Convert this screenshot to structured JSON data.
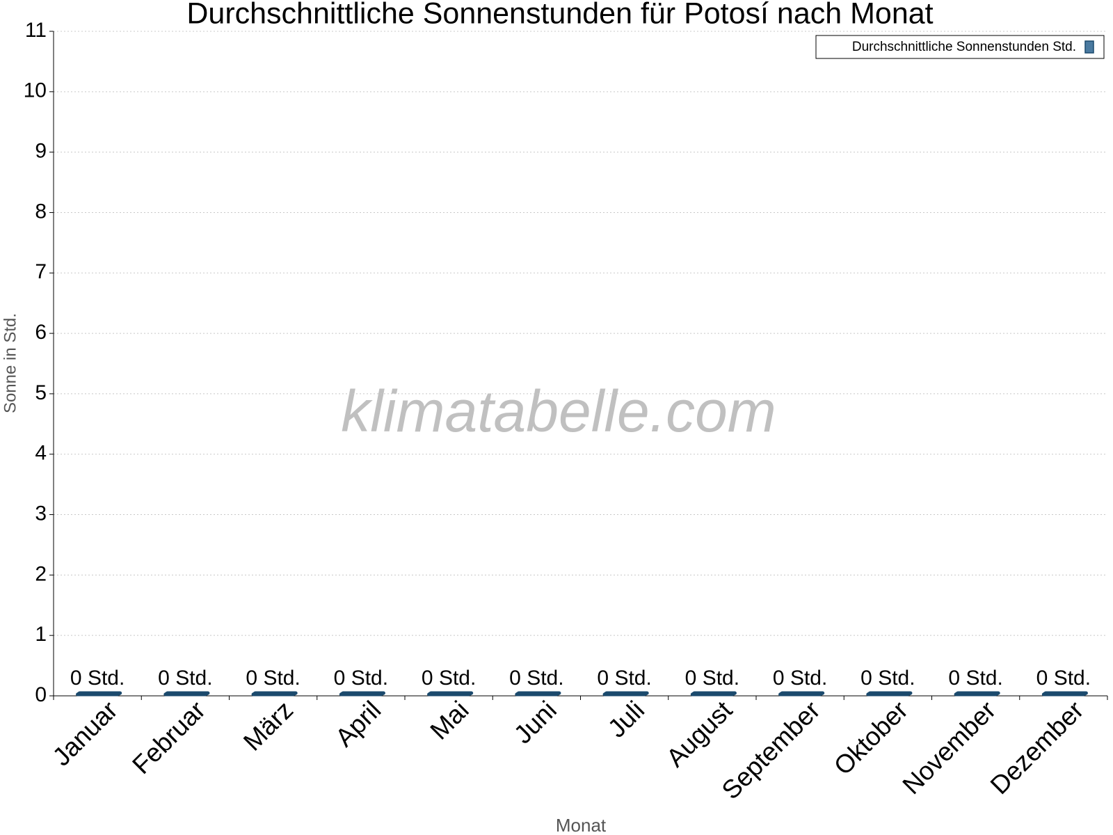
{
  "chart_data": {
    "type": "bar",
    "title": "Durchschnittliche Sonnenstunden für Potosí nach Monat",
    "watermark": "klimatabelle.com",
    "x_label": "Monat",
    "y_label": "Sonne in Std.",
    "categories": [
      "Januar",
      "Februar",
      "März",
      "April",
      "Mai",
      "Juni",
      "Juli",
      "August",
      "September",
      "Oktober",
      "November",
      "Dezember"
    ],
    "series": [
      {
        "name": "Durchschnittliche Sonnenstunden Std.",
        "color": "#1b4a6d",
        "values": [
          0,
          0,
          0,
          0,
          0,
          0,
          0,
          0,
          0,
          0,
          0,
          0
        ],
        "value_labels": [
          "0 Std.",
          "0 Std.",
          "0 Std.",
          "0 Std.",
          "0 Std.",
          "0 Std.",
          "0 Std.",
          "0 Std.",
          "0 Std.",
          "0 Std.",
          "0 Std.",
          "0 Std."
        ]
      }
    ],
    "ylim": [
      0,
      11
    ],
    "yticks": [
      0,
      1,
      2,
      3,
      4,
      5,
      6,
      7,
      8,
      9,
      10,
      11
    ],
    "grid": true,
    "legend": "top-right"
  }
}
